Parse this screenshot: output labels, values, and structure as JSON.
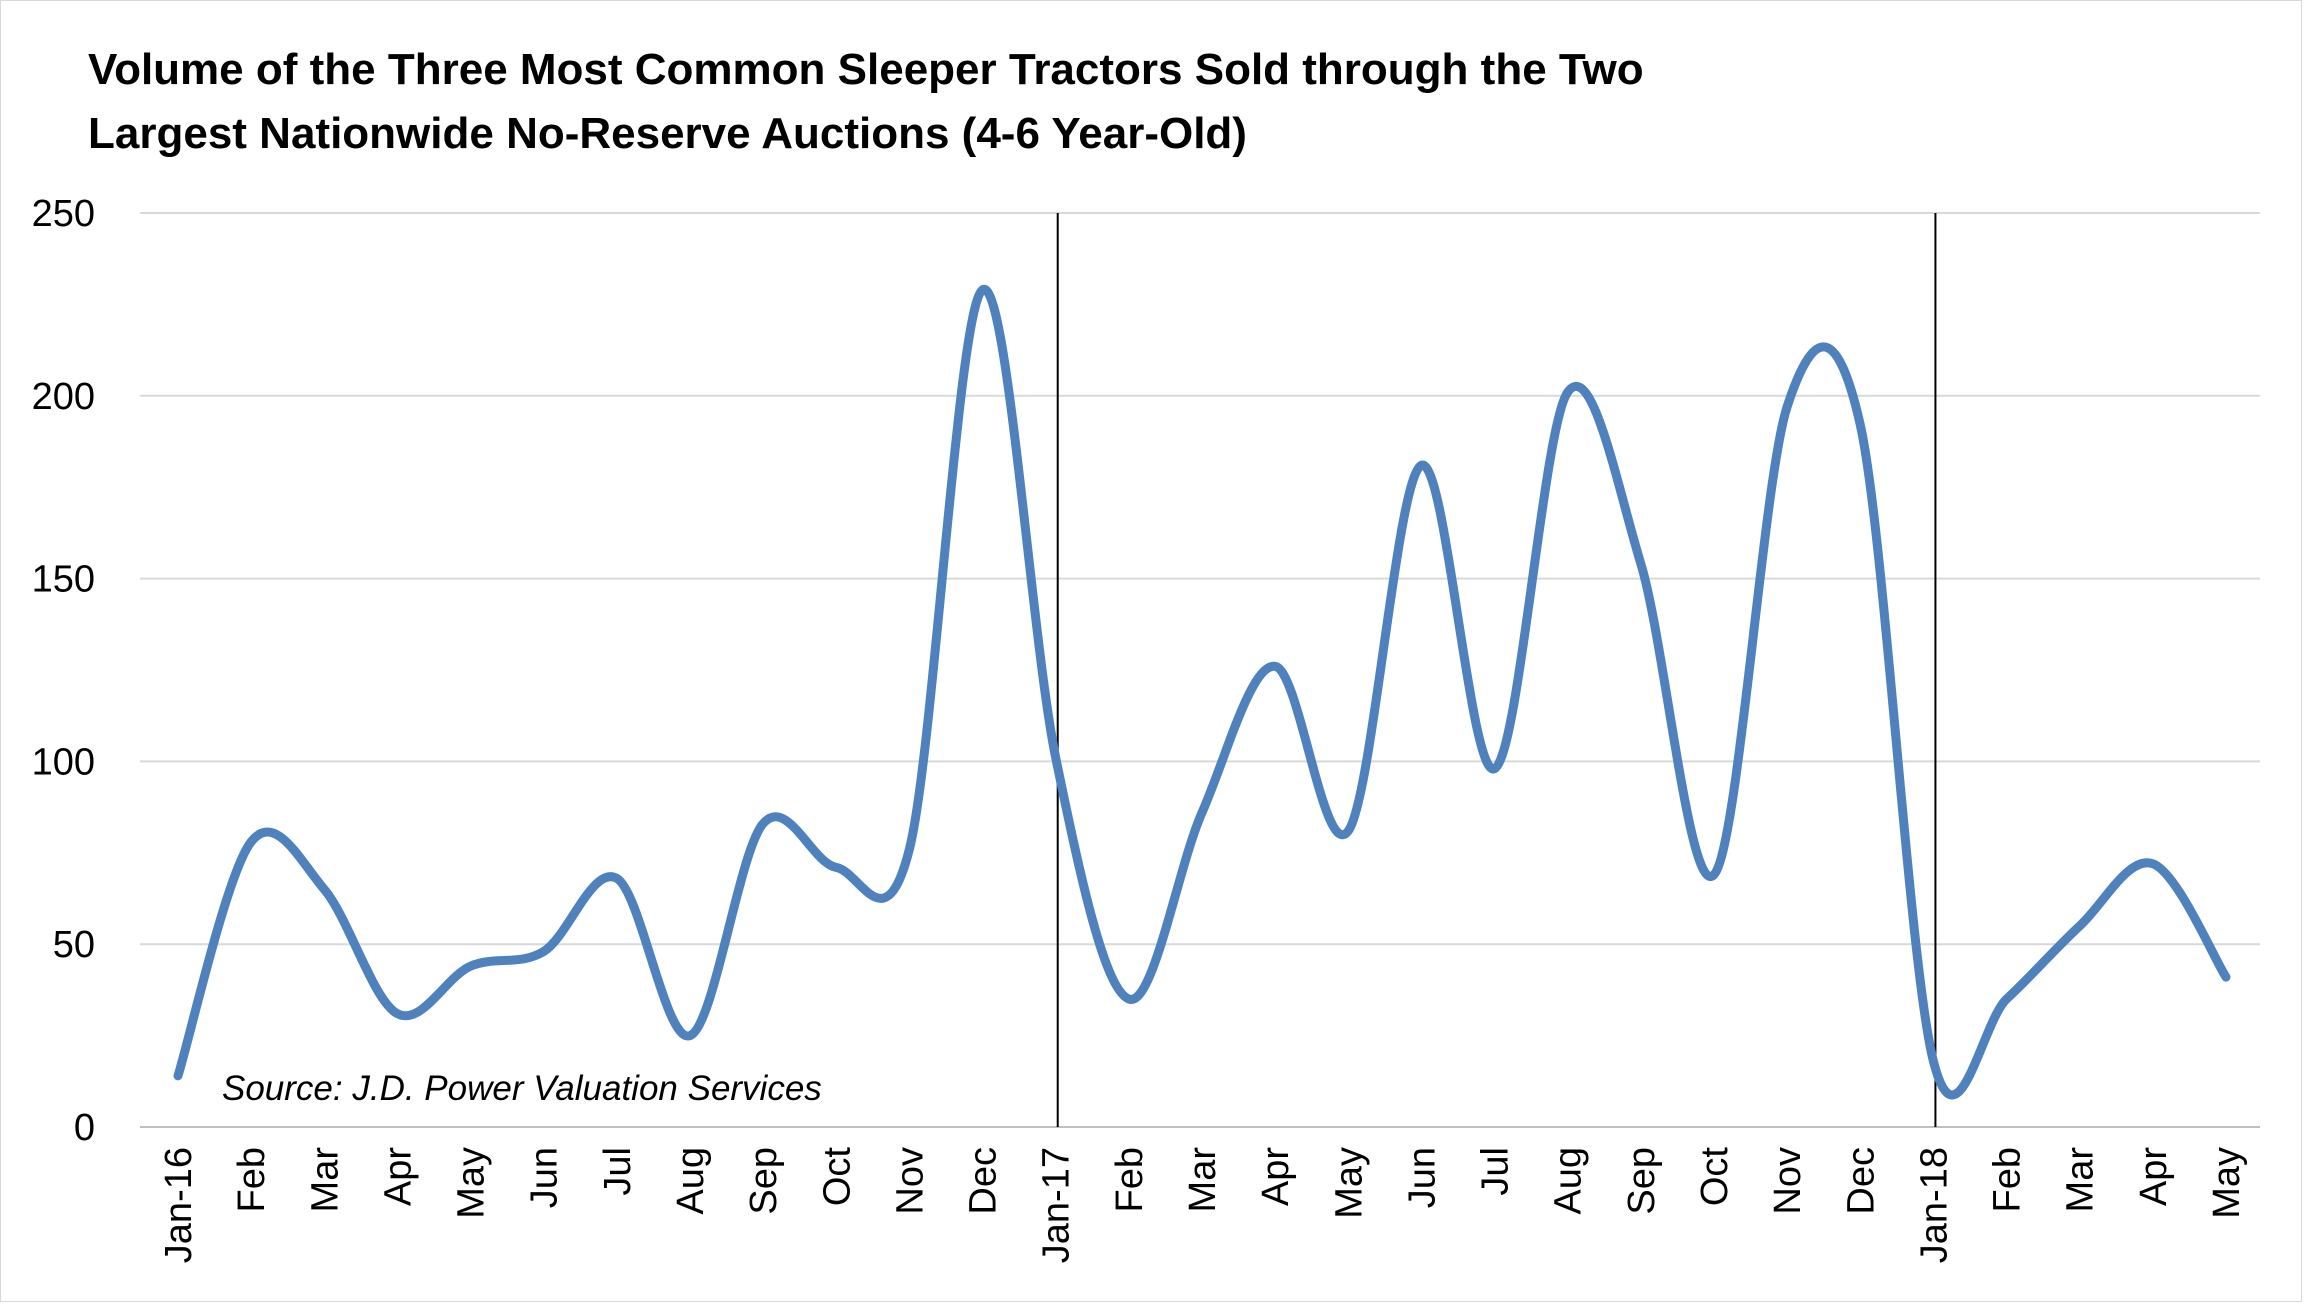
{
  "chart_data": {
    "type": "line",
    "title_lines": [
      "Volume of the Three Most Common Sleeper Tractors Sold through the Two",
      "Largest Nationwide No-Reserve Auctions (4-6 Year-Old)"
    ],
    "xlabel": "",
    "ylabel": "",
    "ylim": [
      0,
      250
    ],
    "yticks": [
      0,
      50,
      100,
      150,
      200,
      250
    ],
    "grid": "horizontal",
    "legend": "none",
    "categories": [
      "Jan-16",
      "Feb",
      "Mar",
      "Apr",
      "May",
      "Jun",
      "Jul",
      "Aug",
      "Sep",
      "Oct",
      "Nov",
      "Dec",
      "Jan-17",
      "Feb",
      "Mar",
      "Apr",
      "May",
      "Jun",
      "Jul",
      "Aug",
      "Sep",
      "Oct",
      "Nov",
      "Dec",
      "Jan-18",
      "Feb",
      "Mar",
      "Apr",
      "May"
    ],
    "series": [
      {
        "values": [
          14,
          78,
          65,
          31,
          44,
          48,
          68,
          25,
          83,
          71,
          76,
          229,
          101,
          35,
          86,
          126,
          81,
          181,
          98,
          201,
          154,
          69,
          197,
          192,
          18,
          35,
          55,
          72,
          41
        ],
        "color": "#4f81bd"
      }
    ],
    "vertical_markers": [
      "Jan-17",
      "Jan-18"
    ],
    "annotation": "Source: J.D. Power Valuation Services"
  }
}
